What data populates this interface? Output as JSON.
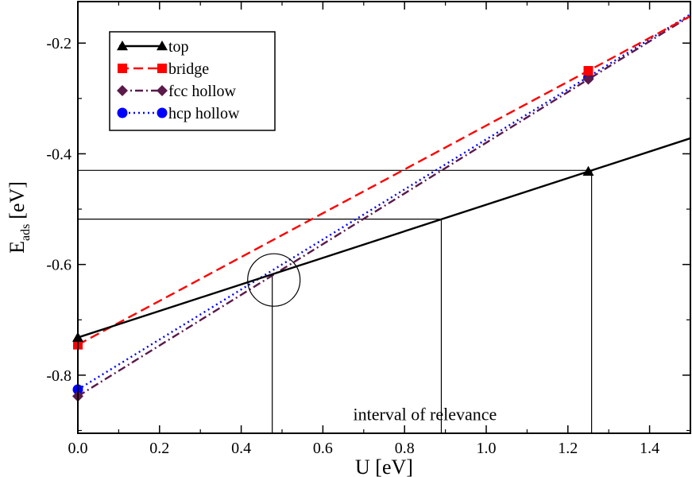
{
  "chart_data": {
    "type": "line",
    "xlabel": "U [eV]",
    "ylabel": {
      "main": "E",
      "sub": "ads",
      "unit": "[eV]"
    },
    "xlim": [
      0,
      1.5
    ],
    "ylim": [
      -0.905,
      -0.125
    ],
    "xticks": [
      0.0,
      0.2,
      0.4,
      0.6,
      0.8,
      1.0,
      1.2,
      1.4
    ],
    "xtick_labels": [
      "0.0",
      "0.2",
      "0.4",
      "0.6",
      "0.8",
      "1.0",
      "1.2",
      "1.4"
    ],
    "yticks": [
      -0.8,
      -0.6,
      -0.4,
      -0.2
    ],
    "ytick_labels": [
      "-0.8",
      "-0.6",
      "-0.4",
      "-0.2"
    ],
    "legend_position": "top-left",
    "series": [
      {
        "name": "top",
        "color": "#000000",
        "style": "solid",
        "marker": "triangle",
        "points": [
          [
            0.0,
            -0.732
          ],
          [
            1.25,
            -0.432
          ]
        ],
        "line": [
          [
            0.0,
            -0.732
          ],
          [
            1.5,
            -0.372
          ]
        ]
      },
      {
        "name": "bridge",
        "color": "#ff0000",
        "style": "dashed",
        "marker": "square",
        "points": [
          [
            0.0,
            -0.745
          ],
          [
            1.25,
            -0.25
          ]
        ],
        "line": [
          [
            0.0,
            -0.745
          ],
          [
            1.5,
            -0.151
          ]
        ]
      },
      {
        "name": "fcc hollow",
        "color": "#5a1a4a",
        "style": "dashdot",
        "marker": "diamond",
        "points": [
          [
            0.0,
            -0.838
          ],
          [
            1.25,
            -0.265
          ]
        ],
        "line": [
          [
            0.0,
            -0.838
          ],
          [
            1.5,
            -0.151
          ]
        ]
      },
      {
        "name": "hcp hollow",
        "color": "#0000ff",
        "style": "dotted",
        "marker": "circle",
        "points": [
          [
            0.0,
            -0.826
          ],
          [
            1.25,
            -0.262
          ]
        ],
        "line": [
          [
            0.0,
            -0.826
          ],
          [
            1.5,
            -0.148
          ]
        ]
      }
    ],
    "reference_lines": {
      "horizontal": [
        {
          "y": -0.43,
          "x_end": 1.25
        },
        {
          "y": -0.518,
          "x_end": 0.89
        }
      ],
      "vertical": [
        {
          "x": 0.476,
          "y_top": -0.618
        },
        {
          "x": 0.89,
          "y_top": -0.518
        },
        {
          "x": 1.258,
          "y_top": -0.43
        }
      ]
    },
    "circle_marker": {
      "x": 0.48,
      "y": -0.628
    },
    "annotation": {
      "text": "interval of relevance",
      "x": 0.85,
      "y": -0.87
    }
  }
}
